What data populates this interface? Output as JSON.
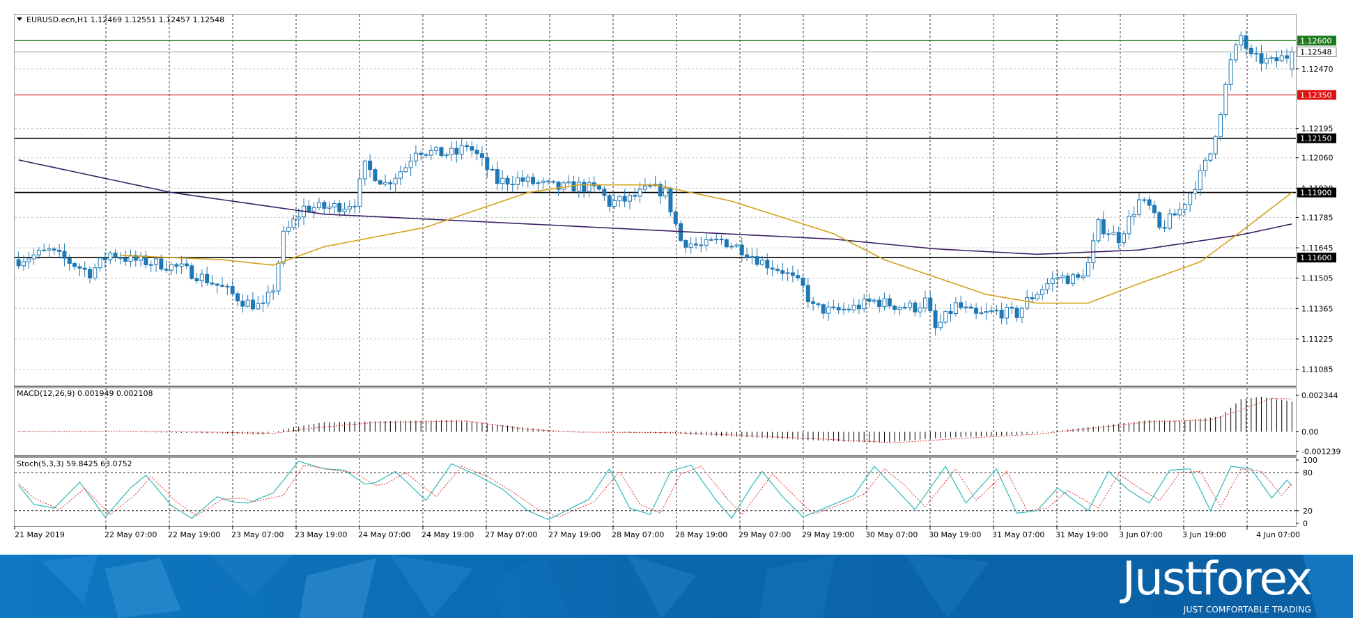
{
  "symbol_header": "EURUSD.ecn,H1  1.12469 1.12551 1.12457 1.12548",
  "macd_header": "MACD(12,26,9) 0.001949 0.002108",
  "stoch_header": "Stoch(5,3,3) 59.8425 63.0752",
  "brand": {
    "name": "Justforex",
    "tagline": "JUST COMFORTABLE TRADING"
  },
  "colors": {
    "bull": "#ffffff",
    "bear": "#1f78b4",
    "wick": "#1f78b4",
    "ma_slow": "#3b1f63",
    "ma_fast": "#d4a017",
    "level_green": "#1e7a1e",
    "level_red": "#e01010",
    "level_black": "#000000",
    "macd_signal": "#d9302b",
    "stoch_main": "#2eb8b8",
    "stoch_signal": "#d9302b",
    "banner_blue": "#0a6db5"
  },
  "chart_data": [
    {
      "type": "candlestick",
      "title": "EURUSD.ecn,H1",
      "ylim": [
        1.1101,
        1.1272
      ],
      "y_ticks": [
        "1.12470",
        "1.12195",
        "1.12060",
        "1.11920",
        "1.11785",
        "1.11645",
        "1.11505",
        "1.11365",
        "1.11225",
        "1.11085"
      ],
      "x_ticks": [
        "21 May 2019",
        "22 May 07:00",
        "22 May 19:00",
        "23 May 07:00",
        "23 May 19:00",
        "24 May 07:00",
        "24 May 19:00",
        "27 May 07:00",
        "27 May 19:00",
        "28 May 07:00",
        "28 May 19:00",
        "29 May 07:00",
        "29 May 19:00",
        "30 May 07:00",
        "30 May 19:00",
        "31 May 07:00",
        "31 May 19:00",
        "3 Jun 07:00",
        "3 Jun 19:00",
        "4 Jun 07:00"
      ],
      "price_labels": [
        {
          "value": 1.126,
          "text": "1.12600",
          "style": "green"
        },
        {
          "value": 1.12548,
          "text": "1.12548",
          "style": "current"
        },
        {
          "value": 1.1235,
          "text": "1.12350",
          "style": "red"
        },
        {
          "value": 1.1215,
          "text": "1.12150",
          "style": "black"
        },
        {
          "value": 1.119,
          "text": "1.11900",
          "style": "black"
        },
        {
          "value": 1.116,
          "text": "1.11600",
          "style": "black"
        }
      ],
      "horizontal_levels": [
        {
          "value": 1.126,
          "color": "green"
        },
        {
          "value": 1.12548,
          "color": "gray"
        },
        {
          "value": 1.1235,
          "color": "red"
        },
        {
          "value": 1.1215,
          "color": "black"
        },
        {
          "value": 1.119,
          "color": "black"
        },
        {
          "value": 1.116,
          "color": "black"
        }
      ],
      "anchors": [
        [
          0,
          1.1159
        ],
        [
          6,
          1.1163
        ],
        [
          10,
          1.1158
        ],
        [
          14,
          1.1153
        ],
        [
          18,
          1.1162
        ],
        [
          22,
          1.1159
        ],
        [
          28,
          1.1157
        ],
        [
          32,
          1.1155
        ],
        [
          36,
          1.1151
        ],
        [
          40,
          1.1146
        ],
        [
          44,
          1.114
        ],
        [
          48,
          1.1137
        ],
        [
          50,
          1.1146
        ],
        [
          52,
          1.117
        ],
        [
          56,
          1.1183
        ],
        [
          60,
          1.1183
        ],
        [
          64,
          1.1184
        ],
        [
          66,
          1.1186
        ],
        [
          68,
          1.1202
        ],
        [
          72,
          1.1194
        ],
        [
          76,
          1.1202
        ],
        [
          78,
          1.121
        ],
        [
          82,
          1.1208
        ],
        [
          86,
          1.1208
        ],
        [
          88,
          1.1212
        ],
        [
          90,
          1.1207
        ],
        [
          94,
          1.1195
        ],
        [
          98,
          1.1196
        ],
        [
          102,
          1.1194
        ],
        [
          106,
          1.1192
        ],
        [
          110,
          1.1193
        ],
        [
          114,
          1.1191
        ],
        [
          116,
          1.1185
        ],
        [
          120,
          1.1187
        ],
        [
          124,
          1.1192
        ],
        [
          127,
          1.119
        ],
        [
          130,
          1.1168
        ],
        [
          134,
          1.1165
        ],
        [
          138,
          1.1168
        ],
        [
          142,
          1.1164
        ],
        [
          146,
          1.1158
        ],
        [
          150,
          1.1154
        ],
        [
          154,
          1.1146
        ],
        [
          156,
          1.1137
        ],
        [
          160,
          1.1135
        ],
        [
          164,
          1.1137
        ],
        [
          168,
          1.114
        ],
        [
          172,
          1.1138
        ],
        [
          176,
          1.1137
        ],
        [
          178,
          1.114
        ],
        [
          180,
          1.1127
        ],
        [
          184,
          1.1138
        ],
        [
          188,
          1.1133
        ],
        [
          192,
          1.1135
        ],
        [
          196,
          1.1134
        ],
        [
          198,
          1.114
        ],
        [
          202,
          1.1148
        ],
        [
          204,
          1.1151
        ],
        [
          208,
          1.115
        ],
        [
          210,
          1.1157
        ],
        [
          212,
          1.1175
        ],
        [
          216,
          1.1169
        ],
        [
          220,
          1.1186
        ],
        [
          222,
          1.1183
        ],
        [
          224,
          1.1173
        ],
        [
          228,
          1.1182
        ],
        [
          232,
          1.1198
        ],
        [
          234,
          1.1208
        ],
        [
          236,
          1.1228
        ],
        [
          238,
          1.125
        ],
        [
          240,
          1.1262
        ],
        [
          242,
          1.1252
        ],
        [
          246,
          1.125
        ],
        [
          250,
          1.1254
        ]
      ],
      "series": [
        {
          "name": "MA slow",
          "points": [
            [
              0,
              1.1205
            ],
            [
              30,
              1.119
            ],
            [
              60,
              1.118
            ],
            [
              100,
              1.11755
            ],
            [
              130,
              1.1172
            ],
            [
              160,
              1.11685
            ],
            [
              180,
              1.1164
            ],
            [
              200,
              1.11615
            ],
            [
              220,
              1.11635
            ],
            [
              240,
              1.11705
            ],
            [
              250,
              1.11755
            ]
          ]
        },
        {
          "name": "MA fast",
          "points": [
            [
              20,
              1.1161
            ],
            [
              40,
              1.1159
            ],
            [
              50,
              1.11565
            ],
            [
              60,
              1.1165
            ],
            [
              80,
              1.1174
            ],
            [
              100,
              1.119
            ],
            [
              110,
              1.11935
            ],
            [
              125,
              1.11935
            ],
            [
              140,
              1.1186
            ],
            [
              160,
              1.1171
            ],
            [
              170,
              1.1159
            ],
            [
              190,
              1.1143
            ],
            [
              200,
              1.1139
            ],
            [
              210,
              1.1139
            ],
            [
              220,
              1.1148
            ],
            [
              232,
              1.1158
            ],
            [
              240,
              1.1172
            ],
            [
              250,
              1.119
            ]
          ]
        }
      ]
    },
    {
      "type": "bar",
      "title": "MACD(12,26,9)",
      "ylim": [
        -0.00145,
        0.0027
      ],
      "y_ticks": [
        "0.002344",
        "0.00",
        "-0.001239"
      ],
      "main_anchors": [
        [
          0,
          4e-05
        ],
        [
          20,
          0.0
        ],
        [
          40,
          -0.0001
        ],
        [
          48,
          -0.00018
        ],
        [
          54,
          0.0003
        ],
        [
          60,
          0.00062
        ],
        [
          70,
          0.00068
        ],
        [
          86,
          0.00075
        ],
        [
          96,
          0.0004
        ],
        [
          106,
          5e-05
        ],
        [
          120,
          -5e-05
        ],
        [
          128,
          -0.0001
        ],
        [
          140,
          -0.0003
        ],
        [
          160,
          -0.0006
        ],
        [
          170,
          -0.0007
        ],
        [
          180,
          -0.0004
        ],
        [
          196,
          -0.0002
        ],
        [
          206,
          0.00015
        ],
        [
          214,
          0.00045
        ],
        [
          222,
          0.00075
        ],
        [
          228,
          0.0007
        ],
        [
          236,
          0.001
        ],
        [
          240,
          0.0021
        ],
        [
          244,
          0.00225
        ],
        [
          250,
          0.00195
        ]
      ],
      "signal_anchors": [
        [
          0,
          2e-05
        ],
        [
          20,
          5e-05
        ],
        [
          40,
          -3e-05
        ],
        [
          50,
          -0.0001
        ],
        [
          58,
          0.00025
        ],
        [
          70,
          0.0006
        ],
        [
          88,
          0.0007
        ],
        [
          100,
          0.00015
        ],
        [
          110,
          -2e-05
        ],
        [
          128,
          -5e-05
        ],
        [
          140,
          -0.0002
        ],
        [
          160,
          -0.0005
        ],
        [
          172,
          -0.0007
        ],
        [
          186,
          -0.0004
        ],
        [
          200,
          -0.00015
        ],
        [
          214,
          0.00035
        ],
        [
          222,
          0.00065
        ],
        [
          234,
          0.00075
        ],
        [
          240,
          0.0014
        ],
        [
          246,
          0.00215
        ],
        [
          250,
          0.00211
        ]
      ]
    },
    {
      "type": "line",
      "title": "Stoch(5,3,3)",
      "ylim": [
        0,
        100
      ],
      "y_ticks": [
        "100",
        "80",
        "20",
        "0"
      ],
      "levels": [
        80,
        20
      ],
      "anchors": [
        [
          0,
          60
        ],
        [
          3,
          30
        ],
        [
          7,
          24
        ],
        [
          12,
          65
        ],
        [
          17,
          10
        ],
        [
          22,
          56
        ],
        [
          25,
          76
        ],
        [
          30,
          28
        ],
        [
          34,
          8
        ],
        [
          39,
          42
        ],
        [
          42,
          34
        ],
        [
          45,
          32
        ],
        [
          50,
          48
        ],
        [
          55,
          98
        ],
        [
          60,
          86
        ],
        [
          64,
          84
        ],
        [
          68,
          62
        ],
        [
          70,
          64
        ],
        [
          74,
          82
        ],
        [
          80,
          36
        ],
        [
          85,
          94
        ],
        [
          90,
          76
        ],
        [
          95,
          54
        ],
        [
          100,
          20
        ],
        [
          104,
          6
        ],
        [
          112,
          38
        ],
        [
          116,
          86
        ],
        [
          120,
          24
        ],
        [
          124,
          14
        ],
        [
          128,
          82
        ],
        [
          132,
          92
        ],
        [
          137,
          36
        ],
        [
          140,
          8
        ],
        [
          144,
          60
        ],
        [
          146,
          82
        ],
        [
          150,
          42
        ],
        [
          154,
          10
        ],
        [
          160,
          30
        ],
        [
          164,
          44
        ],
        [
          168,
          90
        ],
        [
          172,
          56
        ],
        [
          176,
          22
        ],
        [
          182,
          90
        ],
        [
          186,
          32
        ],
        [
          192,
          86
        ],
        [
          196,
          16
        ],
        [
          200,
          20
        ],
        [
          204,
          56
        ],
        [
          210,
          20
        ],
        [
          214,
          82
        ],
        [
          218,
          52
        ],
        [
          222,
          32
        ],
        [
          226,
          84
        ],
        [
          230,
          86
        ],
        [
          234,
          20
        ],
        [
          238,
          90
        ],
        [
          242,
          86
        ],
        [
          246,
          40
        ],
        [
          249,
          68
        ],
        [
          250,
          60
        ]
      ],
      "signal_anchors": [
        [
          0,
          63
        ],
        [
          3,
          40
        ],
        [
          8,
          22
        ],
        [
          13,
          55
        ],
        [
          18,
          14
        ],
        [
          23,
          46
        ],
        [
          26,
          74
        ],
        [
          31,
          34
        ],
        [
          35,
          12
        ],
        [
          40,
          38
        ],
        [
          44,
          40
        ],
        [
          46,
          34
        ],
        [
          52,
          44
        ],
        [
          56,
          92
        ],
        [
          62,
          84
        ],
        [
          66,
          80
        ],
        [
          70,
          60
        ],
        [
          72,
          62
        ],
        [
          76,
          80
        ],
        [
          82,
          42
        ],
        [
          87,
          90
        ],
        [
          92,
          74
        ],
        [
          97,
          50
        ],
        [
          102,
          22
        ],
        [
          106,
          10
        ],
        [
          113,
          34
        ],
        [
          118,
          82
        ],
        [
          122,
          30
        ],
        [
          126,
          16
        ],
        [
          130,
          78
        ],
        [
          134,
          90
        ],
        [
          139,
          40
        ],
        [
          142,
          14
        ],
        [
          146,
          56
        ],
        [
          148,
          78
        ],
        [
          152,
          46
        ],
        [
          156,
          14
        ],
        [
          162,
          32
        ],
        [
          166,
          46
        ],
        [
          170,
          86
        ],
        [
          174,
          60
        ],
        [
          178,
          26
        ],
        [
          184,
          86
        ],
        [
          188,
          36
        ],
        [
          194,
          82
        ],
        [
          198,
          20
        ],
        [
          202,
          24
        ],
        [
          206,
          52
        ],
        [
          212,
          24
        ],
        [
          216,
          78
        ],
        [
          220,
          56
        ],
        [
          224,
          36
        ],
        [
          228,
          80
        ],
        [
          232,
          82
        ],
        [
          236,
          26
        ],
        [
          240,
          86
        ],
        [
          244,
          82
        ],
        [
          248,
          44
        ],
        [
          250,
          63
        ]
      ]
    }
  ]
}
